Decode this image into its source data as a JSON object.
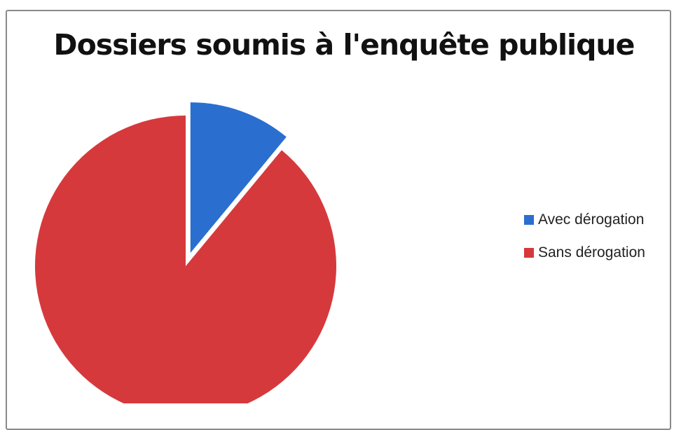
{
  "chart_data": {
    "type": "pie",
    "title": "Dossiers soumis à l'enquête publique",
    "slices": [
      {
        "name": "Avec dérogation",
        "value": 11,
        "color": "#2a6fd0",
        "exploded": true
      },
      {
        "name": "Sans dérogation",
        "value": 89,
        "color": "#d6393c",
        "exploded": false
      }
    ],
    "legend": {
      "position": "right"
    }
  }
}
